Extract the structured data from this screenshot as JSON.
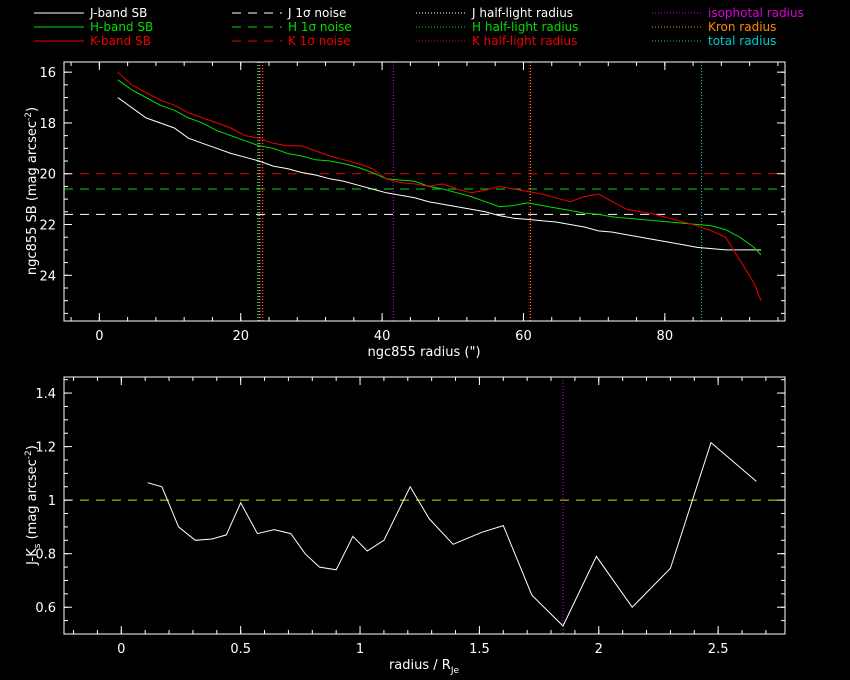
{
  "legend": [
    {
      "label": "J-band SB",
      "color": "#ffffff",
      "style": "solid"
    },
    {
      "label": "H-band SB",
      "color": "#00dd00",
      "style": "solid"
    },
    {
      "label": "K-band SB",
      "color": "#ee0000",
      "style": "solid"
    },
    {
      "label": "J 1σ noise",
      "color": "#ffffff",
      "style": "dashed"
    },
    {
      "label": "H 1σ noise",
      "color": "#00dd00",
      "style": "dashed"
    },
    {
      "label": "K 1σ noise",
      "color": "#ee0000",
      "style": "dashed"
    },
    {
      "label": "J half-light radius",
      "color": "#ffffff",
      "style": "dotted"
    },
    {
      "label": "H half-light radius",
      "color": "#00dd00",
      "style": "dotted"
    },
    {
      "label": "K half-light radius",
      "color": "#ee0000",
      "style": "dotted"
    },
    {
      "label": "isophotal radius",
      "color": "#dd00dd",
      "style": "dotted"
    },
    {
      "label": "Kron radius",
      "color": "#ff8800",
      "style": "dotted"
    },
    {
      "label": "total radius",
      "color": "#00cccc",
      "style": "dotted"
    }
  ],
  "chart_data": [
    {
      "type": "line",
      "xlabel": "ngc855 radius (\")",
      "ylabel": "ngc855 SB (mag arcsec",
      "ylabel_sup": "-2",
      "ylabel_end": ")",
      "xlim": [
        -5,
        97
      ],
      "ylim": [
        25.8,
        15.6
      ],
      "xticks": [
        0,
        20,
        40,
        60,
        80
      ],
      "yticks": [
        16,
        18,
        20,
        22,
        24
      ],
      "series": [
        {
          "name": "J-band SB",
          "color": "#ffffff",
          "x": [
            2.6,
            4.6,
            6.6,
            8.6,
            10.6,
            12.6,
            14.6,
            16.6,
            18.6,
            20.6,
            22.6,
            24.6,
            26.6,
            28.6,
            30.6,
            32.6,
            34.6,
            36.6,
            38.6,
            40.6,
            42.6,
            44.6,
            46.6,
            48.6,
            50.6,
            52.6,
            54.6,
            56.6,
            58.6,
            60.6,
            62.6,
            64.6,
            66.6,
            68.6,
            70.6,
            72.6,
            74.6,
            76.6,
            78.6,
            80.6,
            82.6,
            84.6,
            86.6,
            88.6,
            90.6,
            92.6,
            93.6
          ],
          "y": [
            17.0,
            17.4,
            17.8,
            18.0,
            18.2,
            18.6,
            18.8,
            19.0,
            19.2,
            19.35,
            19.5,
            19.7,
            19.8,
            19.95,
            20.05,
            20.2,
            20.3,
            20.45,
            20.6,
            20.75,
            20.85,
            20.95,
            21.1,
            21.2,
            21.3,
            21.4,
            21.5,
            21.65,
            21.75,
            21.8,
            21.85,
            21.9,
            22.0,
            22.1,
            22.25,
            22.3,
            22.4,
            22.5,
            22.6,
            22.7,
            22.8,
            22.9,
            22.95,
            23.0,
            23.0,
            23.0,
            23.0
          ]
        },
        {
          "name": "H-band SB",
          "color": "#00dd00",
          "x": [
            2.6,
            4.6,
            6.6,
            8.6,
            10.6,
            12.6,
            14.6,
            16.6,
            18.6,
            20.6,
            22.6,
            24.6,
            26.6,
            28.6,
            30.6,
            32.6,
            34.6,
            36.6,
            38.6,
            40.6,
            42.6,
            44.6,
            46.6,
            48.6,
            50.6,
            52.6,
            54.6,
            56.6,
            58.6,
            60.6,
            62.6,
            64.6,
            66.6,
            68.6,
            70.6,
            72.6,
            74.6,
            76.6,
            78.6,
            80.6,
            82.6,
            84.6,
            86.6,
            88.6,
            90.6,
            92.6,
            93.6
          ],
          "y": [
            16.3,
            16.7,
            17.0,
            17.3,
            17.5,
            17.8,
            18.0,
            18.3,
            18.5,
            18.7,
            18.9,
            19.0,
            19.2,
            19.3,
            19.45,
            19.5,
            19.6,
            19.75,
            19.95,
            20.2,
            20.25,
            20.3,
            20.5,
            20.6,
            20.75,
            20.9,
            21.1,
            21.3,
            21.25,
            21.15,
            21.25,
            21.35,
            21.45,
            21.55,
            21.6,
            21.7,
            21.75,
            21.8,
            21.85,
            21.9,
            21.95,
            22.0,
            22.05,
            22.2,
            22.5,
            22.9,
            23.2
          ]
        },
        {
          "name": "K-band SB",
          "color": "#ee0000",
          "x": [
            2.6,
            4.6,
            6.6,
            8.6,
            10.6,
            12.6,
            14.6,
            16.6,
            18.6,
            20.6,
            22.6,
            24.6,
            26.6,
            28.6,
            30.6,
            32.6,
            34.6,
            36.6,
            38.6,
            40.6,
            42.6,
            44.6,
            46.6,
            48.6,
            50.6,
            52.6,
            54.6,
            56.6,
            58.6,
            60.6,
            62.6,
            64.6,
            66.6,
            68.6,
            70.6,
            72.6,
            74.6,
            76.6,
            78.6,
            80.6,
            82.6,
            84.6,
            86.6,
            88.6,
            90.6,
            92.6,
            93.6
          ],
          "y": [
            16.0,
            16.5,
            16.8,
            17.1,
            17.3,
            17.6,
            17.8,
            18.0,
            18.2,
            18.5,
            18.6,
            18.8,
            18.9,
            18.9,
            19.1,
            19.3,
            19.45,
            19.6,
            19.8,
            20.2,
            20.35,
            20.4,
            20.5,
            20.4,
            20.6,
            20.75,
            20.65,
            20.5,
            20.6,
            20.7,
            20.8,
            20.95,
            21.1,
            20.9,
            20.8,
            21.1,
            21.4,
            21.5,
            21.6,
            21.75,
            21.9,
            22.05,
            22.25,
            22.5,
            23.4,
            24.3,
            25.0
          ]
        }
      ],
      "hlines": [
        {
          "name": "J 1σ noise",
          "y": 21.6,
          "color": "#ffffff",
          "style": "dashed"
        },
        {
          "name": "H 1σ noise",
          "y": 20.6,
          "color": "#00dd00",
          "style": "dashed"
        },
        {
          "name": "K 1σ noise",
          "y": 20.0,
          "color": "#ee0000",
          "style": "dashed"
        }
      ],
      "vlines": [
        {
          "name": "J half-light radius",
          "x": 22.6,
          "color": "#ffffff",
          "style": "dotted"
        },
        {
          "name": "H half-light radius",
          "x": 22.4,
          "color": "#00dd00",
          "style": "dotted"
        },
        {
          "name": "K half-light radius",
          "x": 22.8,
          "color": "#ee0000",
          "style": "dotted"
        },
        {
          "name": "Kron radius",
          "x": 23.1,
          "color": "#ff8800",
          "style": "dotted"
        },
        {
          "name": "isophotal radius",
          "x": 41.6,
          "color": "#dd00dd",
          "style": "dotted"
        },
        {
          "name": "Kron radius 2",
          "x": 61.0,
          "color": "#ff8800",
          "style": "dotted"
        },
        {
          "name": "K half-light radius 2",
          "x": 60.8,
          "color": "#ee0000",
          "style": "dotted"
        },
        {
          "name": "total radius",
          "x": 85.2,
          "color": "#00cccc",
          "style": "dotted"
        }
      ]
    },
    {
      "type": "line",
      "xlabel": "radius / R",
      "xlabel_sub": "Je",
      "ylabel": "J-K",
      "ylabel_sub": "s",
      "ylabel_rest": " (mag arcsec",
      "ylabel_sup": "-2",
      "ylabel_end": ")",
      "xlim": [
        -0.24,
        2.78
      ],
      "ylim": [
        0.5,
        1.46
      ],
      "xticks": [
        0,
        0.5,
        1,
        1.5,
        2,
        2.5
      ],
      "xticklabels": [
        "0",
        "0.5",
        "1",
        "1.5",
        "2",
        "2.5"
      ],
      "yticks": [
        0.6,
        0.8,
        1.0,
        1.2,
        1.4
      ],
      "yticklabels": [
        "0.6",
        "0.8",
        "1",
        "1.2",
        "1.4"
      ],
      "series": [
        {
          "name": "J-Ks",
          "color": "#ffffff",
          "x": [
            0.11,
            0.17,
            0.24,
            0.31,
            0.38,
            0.44,
            0.5,
            0.57,
            0.64,
            0.71,
            0.77,
            0.83,
            0.9,
            0.97,
            1.03,
            1.1,
            1.21,
            1.29,
            1.39,
            1.51,
            1.6,
            1.72,
            1.85,
            1.99,
            2.14,
            2.3,
            2.47,
            2.66
          ],
          "y": [
            1.065,
            1.05,
            0.9,
            0.85,
            0.855,
            0.87,
            0.99,
            0.875,
            0.89,
            0.875,
            0.8,
            0.75,
            0.74,
            0.865,
            0.81,
            0.85,
            1.05,
            0.93,
            0.835,
            0.88,
            0.905,
            0.645,
            0.53,
            0.79,
            0.6,
            0.745,
            1.215,
            1.07
          ]
        }
      ],
      "hlines": [
        {
          "name": "reference",
          "y": 1.0,
          "color": "#dddd00",
          "style": "dashed"
        }
      ],
      "vlines": [
        {
          "name": "isophotal radius",
          "x": 1.85,
          "color": "#dd00dd",
          "style": "dotted"
        }
      ]
    }
  ]
}
